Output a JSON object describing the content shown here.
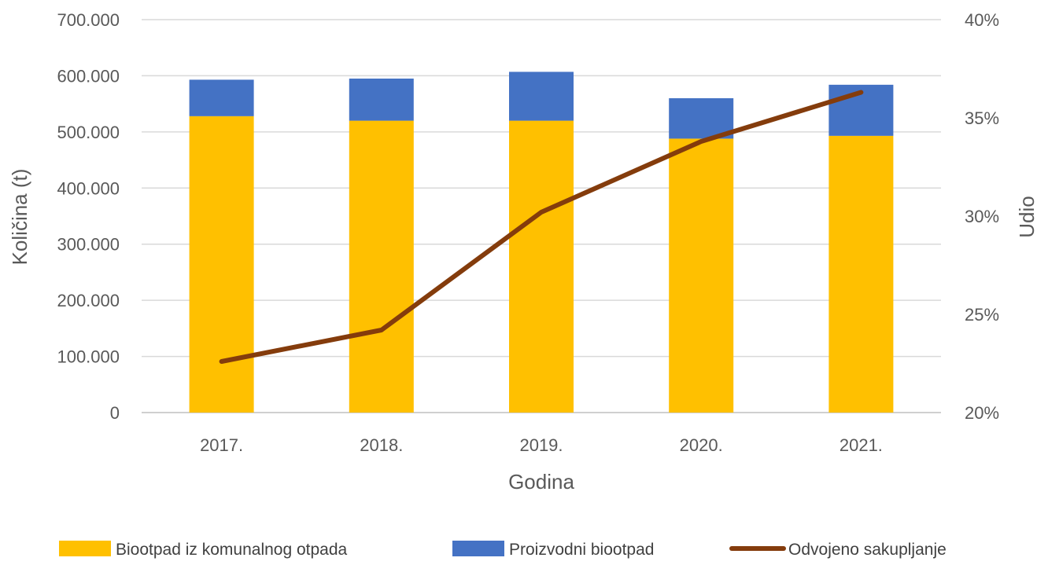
{
  "chart_data": {
    "type": "bar",
    "stacked": true,
    "categories": [
      "2017.",
      "2018.",
      "2019.",
      "2020.",
      "2021."
    ],
    "series": [
      {
        "name": "Biootpad iz komunalnog otpada",
        "kind": "bar",
        "axis": "left",
        "color": "#FFC000",
        "values": [
          528000,
          520000,
          520000,
          488000,
          493000
        ]
      },
      {
        "name": "Proizvodni biootpad",
        "kind": "bar",
        "axis": "left",
        "color": "#4472C4",
        "values": [
          65000,
          75000,
          87000,
          72000,
          91000
        ]
      },
      {
        "name": "Odvojeno sakupljanje",
        "kind": "line",
        "axis": "right",
        "color": "#843C0C",
        "values": [
          0.226,
          0.242,
          0.302,
          0.338,
          0.363
        ]
      }
    ],
    "xlabel": "Godina",
    "ylabel": "Količina (t)",
    "y2label": "Udio",
    "ylim": [
      0,
      700000
    ],
    "y2lim": [
      0.2,
      0.4
    ],
    "yticks": [
      "0",
      "100.000",
      "200.000",
      "300.000",
      "400.000",
      "500.000",
      "600.000",
      "700.000"
    ],
    "y2ticks": [
      "20%",
      "25%",
      "30%",
      "35%",
      "40%"
    ],
    "grid": true,
    "legend": "bottom"
  }
}
